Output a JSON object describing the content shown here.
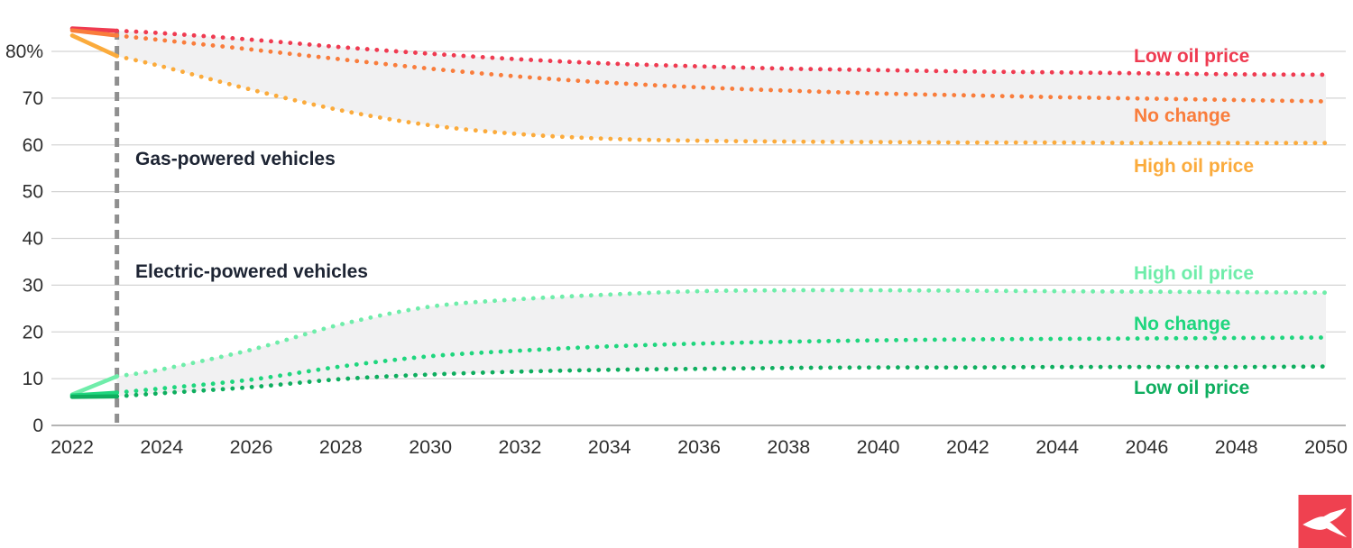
{
  "chart_data": {
    "type": "line",
    "unit": "percent share",
    "x_label": "",
    "y_label": "",
    "xlim": [
      2022,
      2050
    ],
    "ylim": [
      0,
      87
    ],
    "grid": "horizontal",
    "forecast_start_year": 2023,
    "solid_until_year": 2023,
    "years": [
      2022,
      2023,
      2024,
      2026,
      2028,
      2030,
      2032,
      2034,
      2036,
      2038,
      2040,
      2042,
      2044,
      2046,
      2048,
      2050
    ],
    "x_ticks": [
      2022,
      2024,
      2026,
      2028,
      2030,
      2032,
      2034,
      2036,
      2038,
      2040,
      2042,
      2044,
      2046,
      2048,
      2050
    ],
    "y_ticks": [
      {
        "value": 0,
        "label": "0"
      },
      {
        "value": 10,
        "label": "10"
      },
      {
        "value": 20,
        "label": "20"
      },
      {
        "value": 30,
        "label": "30"
      },
      {
        "value": 40,
        "label": "40"
      },
      {
        "value": 50,
        "label": "50"
      },
      {
        "value": 60,
        "label": "60"
      },
      {
        "value": 70,
        "label": "70"
      },
      {
        "value": 80,
        "label": "80%"
      }
    ],
    "group_labels": {
      "gas": "Gas-powered vehicles",
      "ev": "Electric-powered vehicles"
    },
    "series": [
      {
        "group": "Gas-powered vehicles",
        "scenario": "Low oil price",
        "color": "#ef3b51",
        "values": [
          84.9,
          84.4,
          83.9,
          82.5,
          80.9,
          79.5,
          78.3,
          77.4,
          76.8,
          76.3,
          76.0,
          75.7,
          75.5,
          75.3,
          75.1,
          75.0
        ]
      },
      {
        "group": "Gas-powered vehicles",
        "scenario": "No change",
        "color": "#f97d3c",
        "values": [
          84.5,
          83.4,
          82.4,
          80.4,
          78.3,
          76.3,
          74.6,
          73.3,
          72.3,
          71.6,
          71.0,
          70.6,
          70.2,
          69.9,
          69.6,
          69.3
        ]
      },
      {
        "group": "Gas-powered vehicles",
        "scenario": "High oil price",
        "color": "#fbab3c",
        "values": [
          83.4,
          79.0,
          76.8,
          71.8,
          67.4,
          64.2,
          62.3,
          61.3,
          60.9,
          60.7,
          60.6,
          60.5,
          60.5,
          60.4,
          60.4,
          60.4
        ]
      },
      {
        "group": "Electric-powered vehicles",
        "scenario": "High oil price",
        "color": "#6fedaa",
        "values": [
          6.6,
          10.5,
          12.0,
          16.2,
          21.6,
          25.4,
          27.0,
          28.0,
          28.7,
          28.9,
          28.9,
          28.8,
          28.7,
          28.6,
          28.5,
          28.4
        ]
      },
      {
        "group": "Electric-powered vehicles",
        "scenario": "No change",
        "color": "#1fd67e",
        "values": [
          6.4,
          7.0,
          7.9,
          9.8,
          12.6,
          14.8,
          16.0,
          16.9,
          17.5,
          17.9,
          18.2,
          18.4,
          18.5,
          18.6,
          18.7,
          18.8
        ]
      },
      {
        "group": "Electric-powered vehicles",
        "scenario": "Low oil price",
        "color": "#0fae5f",
        "values": [
          6.1,
          6.2,
          6.9,
          8.2,
          9.9,
          10.9,
          11.5,
          11.9,
          12.1,
          12.3,
          12.4,
          12.4,
          12.5,
          12.5,
          12.5,
          12.6
        ]
      }
    ],
    "bands": [
      {
        "upper_series": 0,
        "lower_series": 2,
        "from_year": 2023,
        "fill": "#f1f1f2"
      },
      {
        "upper_series": 3,
        "lower_series": 5,
        "from_year": 2023,
        "fill": "#f1f1f2"
      }
    ],
    "colors": {
      "gridline": "#d4d4d4",
      "axis_line": "#9b9b9b",
      "forecast_divider": "#8f8f8f",
      "axis_text": "#2e2e2e",
      "band_fill": "#f1f1f2",
      "logo_red": "#ef4150"
    }
  }
}
